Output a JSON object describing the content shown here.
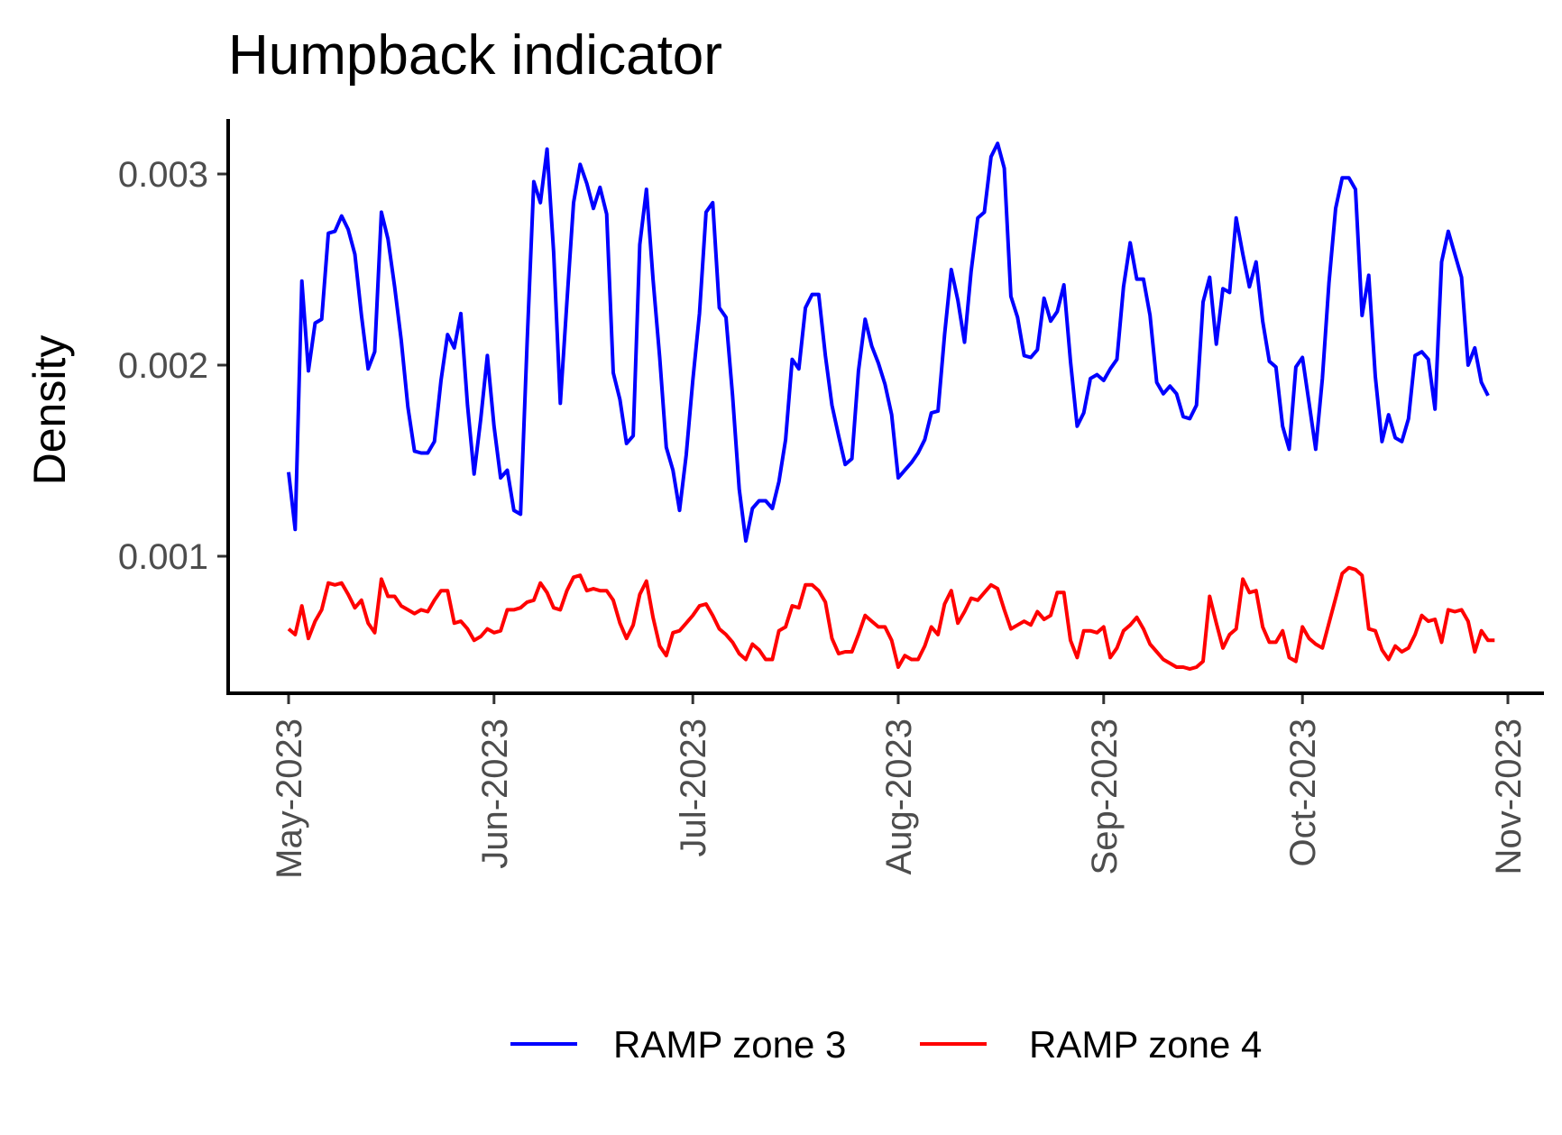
{
  "chart_data": {
    "type": "line",
    "title": "Humpback indicator",
    "xlabel": "",
    "ylabel": "Density",
    "x_axis": {
      "type": "date",
      "range": [
        "2023-05-01",
        "2023-11-01"
      ],
      "ticks": [
        {
          "date": "2023-05-01",
          "label": "May-2023"
        },
        {
          "date": "2023-06-01",
          "label": "Jun-2023"
        },
        {
          "date": "2023-07-01",
          "label": "Jul-2023"
        },
        {
          "date": "2023-08-01",
          "label": "Aug-2023"
        },
        {
          "date": "2023-09-01",
          "label": "Sep-2023"
        },
        {
          "date": "2023-10-01",
          "label": "Oct-2023"
        },
        {
          "date": "2023-11-01",
          "label": "Nov-2023"
        }
      ]
    },
    "y_axis": {
      "range": [
        0.000285,
        0.0033
      ],
      "ticks": [
        {
          "value": 0.001,
          "label": "0.001"
        },
        {
          "value": 0.002,
          "label": "0.002"
        },
        {
          "value": 0.003,
          "label": "0.003"
        }
      ]
    },
    "grid": false,
    "legend_position": "bottom",
    "start_date": "2023-05-01",
    "series": [
      {
        "name": "RAMP zone 3",
        "color": "#0000ff",
        "values": [
          0.00144,
          0.00114,
          0.00244,
          0.00197,
          0.00222,
          0.00224,
          0.00269,
          0.0027,
          0.00278,
          0.00271,
          0.00258,
          0.00226,
          0.00198,
          0.00207,
          0.0028,
          0.00266,
          0.00241,
          0.00213,
          0.00178,
          0.00155,
          0.00154,
          0.00154,
          0.0016,
          0.00192,
          0.00216,
          0.00209,
          0.00227,
          0.00179,
          0.00143,
          0.00172,
          0.00205,
          0.00168,
          0.00141,
          0.00145,
          0.00124,
          0.00122,
          0.00212,
          0.00296,
          0.00285,
          0.00313,
          0.00259,
          0.0018,
          0.00233,
          0.00285,
          0.00305,
          0.00295,
          0.00282,
          0.00293,
          0.00279,
          0.00196,
          0.00182,
          0.00159,
          0.00163,
          0.00263,
          0.00292,
          0.00245,
          0.00204,
          0.00157,
          0.00145,
          0.00124,
          0.00153,
          0.00192,
          0.00227,
          0.0028,
          0.00285,
          0.0023,
          0.00225,
          0.00184,
          0.00135,
          0.00108,
          0.00125,
          0.00129,
          0.00129,
          0.00125,
          0.00139,
          0.00161,
          0.00203,
          0.00198,
          0.0023,
          0.00237,
          0.00237,
          0.00205,
          0.00179,
          0.00163,
          0.00148,
          0.00151,
          0.00197,
          0.00224,
          0.0021,
          0.00201,
          0.0019,
          0.00174,
          0.00141,
          0.00145,
          0.00149,
          0.00154,
          0.00161,
          0.00175,
          0.00176,
          0.00216,
          0.0025,
          0.00234,
          0.00212,
          0.00249,
          0.00277,
          0.0028,
          0.00309,
          0.00316,
          0.00303,
          0.00236,
          0.00225,
          0.00205,
          0.00204,
          0.00208,
          0.00235,
          0.00223,
          0.00228,
          0.00242,
          0.00202,
          0.00168,
          0.00175,
          0.00193,
          0.00195,
          0.00192,
          0.00198,
          0.00203,
          0.00241,
          0.00264,
          0.00245,
          0.00245,
          0.00226,
          0.00191,
          0.00185,
          0.00189,
          0.00185,
          0.00173,
          0.00172,
          0.00179,
          0.00233,
          0.00246,
          0.00211,
          0.0024,
          0.00238,
          0.00277,
          0.00258,
          0.00241,
          0.00254,
          0.00223,
          0.00202,
          0.00199,
          0.00168,
          0.00156,
          0.00199,
          0.00204,
          0.0018,
          0.00156,
          0.00193,
          0.00243,
          0.00282,
          0.00298,
          0.00298,
          0.00292,
          0.00226,
          0.00247,
          0.00194,
          0.0016,
          0.00174,
          0.00162,
          0.0016,
          0.00172,
          0.00205,
          0.00207,
          0.00203,
          0.00177,
          0.00254,
          0.0027,
          0.00258,
          0.00246,
          0.002,
          0.00209,
          0.00191,
          0.00184
        ]
      },
      {
        "name": "RAMP zone 4",
        "color": "#ff0000",
        "values": [
          0.00062,
          0.00059,
          0.00074,
          0.00057,
          0.00066,
          0.00072,
          0.00086,
          0.00085,
          0.00086,
          0.0008,
          0.00073,
          0.00077,
          0.00065,
          0.0006,
          0.00088,
          0.00079,
          0.00079,
          0.00074,
          0.00072,
          0.0007,
          0.00072,
          0.00071,
          0.00077,
          0.00082,
          0.00082,
          0.00065,
          0.00066,
          0.00062,
          0.00056,
          0.00058,
          0.00062,
          0.0006,
          0.00061,
          0.00072,
          0.00072,
          0.00073,
          0.00076,
          0.00077,
          0.00086,
          0.00081,
          0.00073,
          0.00072,
          0.00082,
          0.00089,
          0.0009,
          0.00082,
          0.00083,
          0.00082,
          0.00082,
          0.00077,
          0.00065,
          0.00057,
          0.00064,
          0.0008,
          0.00087,
          0.00068,
          0.00053,
          0.00048,
          0.0006,
          0.00061,
          0.00065,
          0.00069,
          0.00074,
          0.00075,
          0.00069,
          0.00062,
          0.00059,
          0.00055,
          0.00049,
          0.00046,
          0.00054,
          0.00051,
          0.00046,
          0.00046,
          0.00061,
          0.00063,
          0.00074,
          0.00073,
          0.00085,
          0.00085,
          0.00082,
          0.00076,
          0.00057,
          0.00049,
          0.0005,
          0.0005,
          0.00059,
          0.00069,
          0.00066,
          0.00063,
          0.00063,
          0.00056,
          0.00042,
          0.00048,
          0.00046,
          0.00046,
          0.00053,
          0.00063,
          0.00059,
          0.00075,
          0.00082,
          0.00065,
          0.00071,
          0.00078,
          0.00077,
          0.00081,
          0.00085,
          0.00083,
          0.00072,
          0.00062,
          0.00064,
          0.00066,
          0.00064,
          0.00071,
          0.00067,
          0.00069,
          0.00081,
          0.00081,
          0.00056,
          0.00047,
          0.00061,
          0.00061,
          0.0006,
          0.00063,
          0.00047,
          0.00052,
          0.00061,
          0.00064,
          0.00068,
          0.00062,
          0.00054,
          0.0005,
          0.00046,
          0.00044,
          0.00042,
          0.00042,
          0.00041,
          0.00042,
          0.00045,
          0.00079,
          0.00065,
          0.00052,
          0.00059,
          0.00062,
          0.00088,
          0.00081,
          0.00082,
          0.00063,
          0.00055,
          0.00055,
          0.00061,
          0.00047,
          0.00045,
          0.00063,
          0.00057,
          0.00054,
          0.00052,
          0.00065,
          0.00078,
          0.00091,
          0.00094,
          0.00093,
          0.0009,
          0.00062,
          0.00061,
          0.00051,
          0.00046,
          0.00053,
          0.0005,
          0.00052,
          0.00059,
          0.00069,
          0.00066,
          0.00067,
          0.00055,
          0.00072,
          0.00071,
          0.00072,
          0.00066,
          0.0005,
          0.00061,
          0.00056,
          0.00056
        ]
      }
    ]
  }
}
